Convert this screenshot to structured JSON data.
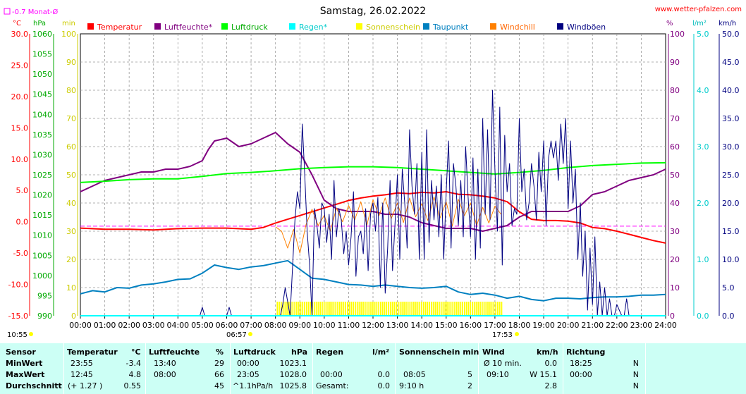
{
  "header": {
    "title": "Samstag, 26.02.2022",
    "website": "www.wetter-pfalzen.com",
    "month_avg_legend": "-0.7 Monat-Ø",
    "unit_temp": "°C",
    "unit_hpa": "hPa",
    "unit_min": "min",
    "unit_pct": "%",
    "unit_rain": "l/m²",
    "unit_wind": "km/h",
    "sunrise": "06:57",
    "sunset": "17:53",
    "day_start": "10:55"
  },
  "colors": {
    "temperature": "#ff0000",
    "humidity": "#800080",
    "pressure": "#00ff00",
    "rain": "#00ffff",
    "sunshine": "#ffff00",
    "dewpoint": "#0080c0",
    "windchill": "#ff8000",
    "gust": "#000080",
    "month_avg": "#ff00ff"
  },
  "chart_data": {
    "type": "line",
    "title": "Samstag, 26.02.2022",
    "x_ticks": [
      "00:00",
      "01:00",
      "02:00",
      "03:00",
      "04:00",
      "05:00",
      "06:00",
      "07:00",
      "08:00",
      "09:00",
      "10:00",
      "11:00",
      "12:00",
      "13:00",
      "14:00",
      "15:00",
      "16:00",
      "17:00",
      "18:00",
      "19:00",
      "20:00",
      "21:00",
      "22:00",
      "23:00",
      "24:00"
    ],
    "xlim": [
      0,
      24
    ],
    "axes": {
      "temperature": {
        "label": "°C",
        "ylim": [
          -15,
          30
        ],
        "ticks": [
          "30.0",
          "25.0",
          "20.0",
          "15.0",
          "10.0",
          "5.0",
          "0.0",
          "-5.0",
          "-10.0",
          "-15.0"
        ]
      },
      "pressure": {
        "label": "hPa",
        "ylim": [
          990,
          1060
        ],
        "ticks": [
          "1060",
          "1055",
          "1050",
          "1045",
          "1040",
          "1035",
          "1030",
          "1025",
          "1020",
          "1015",
          "1010",
          "1005",
          "1000",
          "995",
          "990"
        ]
      },
      "sunshine": {
        "label": "min",
        "ylim": [
          0,
          100
        ],
        "ticks": [
          "100",
          "90",
          "80",
          "70",
          "60",
          "50",
          "40",
          "30",
          "20",
          "10",
          "0"
        ]
      },
      "humidity": {
        "label": "%",
        "ylim": [
          0,
          100
        ],
        "ticks": [
          "100",
          "90",
          "80",
          "70",
          "60",
          "50",
          "40",
          "30",
          "20",
          "10",
          "0"
        ]
      },
      "rain": {
        "label": "l/m²",
        "ylim": [
          0,
          5
        ],
        "ticks": [
          "5.0",
          "4.0",
          "3.0",
          "2.0",
          "1.0",
          "0.0"
        ]
      },
      "wind": {
        "label": "km/h",
        "ylim": [
          0,
          50
        ],
        "ticks": [
          "50.0",
          "45.0",
          "40.0",
          "35.0",
          "30.0",
          "25.0",
          "20.0",
          "15.0",
          "10.0",
          "5.0",
          "0.0"
        ]
      }
    },
    "legend": [
      "Temperatur",
      "Luftfeuchte*",
      "Luftdruck",
      "Regen*",
      "Sonnenschein",
      "Taupunkt",
      "Windchill",
      "Windböen"
    ],
    "month_avg_temperature": -0.7,
    "series": [
      {
        "name": "Temperatur",
        "axis": "temperature",
        "color": "#ff0000",
        "x": [
          0,
          1,
          2,
          3,
          4,
          5,
          6,
          7,
          7.5,
          8,
          8.5,
          9,
          9.5,
          10,
          10.5,
          11,
          11.5,
          12,
          12.5,
          13,
          13.5,
          14,
          14.5,
          15,
          15.5,
          16,
          16.5,
          17,
          17.5,
          18,
          18.5,
          19,
          19.5,
          20,
          20.5,
          21,
          21.5,
          22,
          22.5,
          23,
          23.5,
          24
        ],
        "y": [
          -1.0,
          -1.2,
          -1.2,
          -1.3,
          -1.1,
          -1.0,
          -1.0,
          -1.2,
          -0.9,
          -0.2,
          0.4,
          1.0,
          1.6,
          2.2,
          2.8,
          3.4,
          3.8,
          4.1,
          4.3,
          4.6,
          4.5,
          4.7,
          4.6,
          4.8,
          4.4,
          4.3,
          4.1,
          3.8,
          3.2,
          1.6,
          0.4,
          0.2,
          0.2,
          0.1,
          -0.2,
          -0.9,
          -1.1,
          -1.5,
          -2.0,
          -2.5,
          -3.0,
          -3.4
        ]
      },
      {
        "name": "Luftfeuchte*",
        "axis": "humidity",
        "color": "#800080",
        "x": [
          0,
          0.5,
          1,
          1.5,
          2,
          2.5,
          3,
          3.5,
          4,
          4.5,
          5,
          5.25,
          5.5,
          6,
          6.5,
          7,
          7.5,
          8,
          8.5,
          9,
          9.5,
          10,
          10.5,
          11,
          11.5,
          12,
          12.5,
          13,
          13.5,
          14,
          14.5,
          15,
          15.5,
          16,
          16.5,
          17,
          17.5,
          18,
          18.5,
          19,
          19.5,
          20,
          20.5,
          21,
          21.5,
          22,
          22.5,
          23,
          23.5,
          24
        ],
        "y": [
          44,
          46,
          48,
          49,
          50,
          51,
          51,
          52,
          52,
          53,
          55,
          59,
          62,
          63,
          60,
          61,
          63,
          65,
          61,
          58,
          50,
          41,
          38,
          37,
          37,
          37,
          36,
          36,
          35,
          33,
          32,
          31,
          31,
          31,
          30,
          31,
          32,
          35,
          37,
          37,
          37,
          37,
          39,
          43,
          44,
          46,
          48,
          49,
          50,
          52
        ]
      },
      {
        "name": "Luftdruck",
        "axis": "pressure",
        "color": "#00ff00",
        "x": [
          0,
          1,
          2,
          3,
          4,
          5,
          6,
          7,
          8,
          9,
          10,
          11,
          12,
          13,
          14,
          15,
          16,
          17,
          18,
          19,
          20,
          21,
          22,
          23,
          24
        ],
        "y": [
          1023.1,
          1023.4,
          1023.8,
          1024.0,
          1024.0,
          1024.6,
          1025.3,
          1025.6,
          1026.0,
          1026.5,
          1026.8,
          1027.0,
          1027.0,
          1026.8,
          1026.4,
          1026.0,
          1025.6,
          1025.2,
          1025.6,
          1026.1,
          1026.8,
          1027.3,
          1027.6,
          1027.9,
          1028.0
        ]
      },
      {
        "name": "Taupunkt",
        "axis": "temperature",
        "color": "#0080c0",
        "x": [
          0,
          0.5,
          1,
          1.5,
          2,
          2.5,
          3,
          3.5,
          4,
          4.5,
          5,
          5.5,
          6,
          6.5,
          7,
          7.5,
          8,
          8.5,
          9,
          9.5,
          10,
          10.5,
          11,
          11.5,
          12,
          12.5,
          13,
          13.5,
          14,
          14.5,
          15,
          15.5,
          16,
          16.5,
          17,
          17.5,
          18,
          18.5,
          19,
          19.5,
          20,
          20.5,
          21,
          21.5,
          22,
          22.5,
          23,
          23.5,
          24
        ],
        "y": [
          -11.5,
          -11.0,
          -11.2,
          -10.5,
          -10.6,
          -10.1,
          -9.9,
          -9.6,
          -9.2,
          -9.1,
          -8.2,
          -6.9,
          -7.3,
          -7.6,
          -7.2,
          -7.0,
          -6.6,
          -6.2,
          -7.6,
          -9.0,
          -9.2,
          -9.6,
          -10.0,
          -10.1,
          -10.3,
          -10.1,
          -10.3,
          -10.5,
          -10.6,
          -10.5,
          -10.3,
          -11.2,
          -11.6,
          -11.4,
          -11.7,
          -12.2,
          -11.9,
          -12.4,
          -12.6,
          -12.2,
          -12.2,
          -12.3,
          -12.1,
          -12.0,
          -12.0,
          -11.9,
          -11.7,
          -11.7,
          -11.6
        ]
      },
      {
        "name": "Windchill",
        "axis": "temperature",
        "color": "#ff8000",
        "x": [
          8,
          8.25,
          8.5,
          8.75,
          9,
          9.25,
          9.5,
          9.75,
          10,
          10.25,
          10.5,
          10.75,
          11,
          11.25,
          11.5,
          11.75,
          12,
          12.25,
          12.5,
          12.75,
          13,
          13.25,
          13.5,
          13.75,
          14,
          14.25,
          14.5,
          14.75,
          15,
          15.25,
          15.5,
          15.75,
          16,
          16.25,
          16.5,
          16.75,
          17,
          17.25
        ],
        "y": [
          -0.8,
          -1.5,
          -4.2,
          -1.2,
          -5.0,
          -0.5,
          2.0,
          -0.6,
          1.0,
          -1.5,
          2.2,
          0.0,
          2.6,
          0.3,
          3.2,
          -0.5,
          3.5,
          1.0,
          3.8,
          0.5,
          3.0,
          -0.1,
          3.8,
          0.8,
          2.9,
          0.2,
          4.0,
          0.6,
          3.2,
          -0.7,
          3.6,
          1.0,
          3.0,
          -0.6,
          2.3,
          -0.2,
          2.5,
          1.2
        ]
      },
      {
        "name": "Windböen",
        "axis": "wind",
        "color": "#000080",
        "x": [
          0,
          4.9,
          5.0,
          5.1,
          6.0,
          6.1,
          6.2,
          7.5,
          8.2,
          8.3,
          8.4,
          8.6,
          8.8,
          8.9,
          9.0,
          9.1,
          9.2,
          9.3,
          9.4,
          9.5,
          9.6,
          9.7,
          9.8,
          9.9,
          10.0,
          10.1,
          10.2,
          10.3,
          10.4,
          10.5,
          10.6,
          10.7,
          10.8,
          10.9,
          11.0,
          11.1,
          11.2,
          11.3,
          11.4,
          11.5,
          11.6,
          11.7,
          11.8,
          11.9,
          12.0,
          12.1,
          12.2,
          12.3,
          12.4,
          12.5,
          12.6,
          12.7,
          12.8,
          12.9,
          13.0,
          13.1,
          13.2,
          13.3,
          13.4,
          13.5,
          13.6,
          13.7,
          13.8,
          13.9,
          14.0,
          14.1,
          14.2,
          14.3,
          14.4,
          14.5,
          14.6,
          14.7,
          14.8,
          14.9,
          15.0,
          15.1,
          15.2,
          15.3,
          15.4,
          15.5,
          15.6,
          15.7,
          15.8,
          15.9,
          16.0,
          16.1,
          16.2,
          16.3,
          16.4,
          16.5,
          16.6,
          16.7,
          16.8,
          16.9,
          17.0,
          17.1,
          17.2,
          17.3,
          17.4,
          17.5,
          17.6,
          17.7,
          17.8,
          17.9,
          18.0,
          18.1,
          18.2,
          18.3,
          18.4,
          18.5,
          18.6,
          18.7,
          18.8,
          18.9,
          19.0,
          19.1,
          19.2,
          19.3,
          19.4,
          19.5,
          19.6,
          19.7,
          19.8,
          19.9,
          20.0,
          20.1,
          20.2,
          20.3,
          20.4,
          20.5,
          20.6,
          20.7,
          20.8,
          20.9,
          21.0,
          21.1,
          21.2,
          21.3,
          21.4,
          21.5,
          21.6,
          21.7,
          21.8,
          21.9,
          22.0,
          22.1,
          22.2,
          22.3,
          22.4,
          22.5,
          23.0,
          24.0
        ],
        "y": [
          0,
          0,
          1.5,
          0,
          0,
          1.5,
          0,
          0,
          0,
          2,
          5,
          0,
          17,
          22,
          19,
          34,
          25,
          15,
          9,
          0,
          19,
          16,
          12,
          20,
          19,
          13,
          18,
          10,
          24,
          14,
          19,
          17,
          11,
          15,
          9,
          14,
          22,
          7,
          14,
          15,
          11,
          19,
          8,
          18,
          20,
          15,
          21,
          5,
          20,
          4,
          12,
          24,
          8,
          16,
          25,
          10,
          26,
          20,
          12,
          33,
          23,
          18,
          27,
          10,
          29,
          10,
          33,
          13,
          24,
          17,
          23,
          14,
          25,
          10,
          22,
          31,
          12,
          27,
          23,
          16,
          24,
          14,
          30,
          21,
          14,
          28,
          10,
          26,
          12,
          35,
          18,
          33,
          17,
          40,
          26,
          15,
          37,
          9,
          32,
          22,
          27,
          16,
          19,
          18,
          35,
          22,
          26,
          17,
          20,
          27,
          23,
          17,
          29,
          22,
          31,
          16,
          28,
          31,
          28,
          31,
          24,
          34,
          27,
          35,
          19,
          31,
          20,
          26,
          10,
          20,
          7,
          15,
          1,
          12,
          2,
          14,
          0,
          6,
          0,
          5,
          0,
          3,
          0,
          0,
          2,
          1,
          0,
          0,
          3,
          0,
          0,
          0
        ]
      }
    ],
    "sunshine_bars": {
      "name": "Sonnenschein",
      "axis": "sunshine",
      "start": 8.05,
      "end": 17.3,
      "value": 5
    }
  },
  "table": {
    "columns": [
      {
        "label": "Sensor",
        "unit": ""
      },
      {
        "label": "Temperatur",
        "unit": "°C"
      },
      {
        "label": "Luftfeuchte",
        "unit": "%"
      },
      {
        "label": "Luftdruck",
        "unit": "hPa"
      },
      {
        "label": "Regen",
        "unit": "l/m²"
      },
      {
        "label": "Sonnenschein min",
        "unit": ""
      },
      {
        "label": "Wind",
        "unit": "km/h"
      },
      {
        "label": "Richtung",
        "unit": ""
      }
    ],
    "rows": [
      {
        "sensor": "MinWert",
        "temp_time": "23:55",
        "temp": "-3.4",
        "hum_time": "13:40",
        "hum": "29",
        "press_time": "00:00",
        "press": "1023.1",
        "rain_time": "",
        "rain": "",
        "sun_time": "",
        "sun": "",
        "wind_time": "Ø 10 min.",
        "wind": "0.0",
        "dir_time": "18:25",
        "dir": "N"
      },
      {
        "sensor": "MaxWert",
        "temp_time": "12:45",
        "temp": "4.8",
        "hum_time": "08:00",
        "hum": "66",
        "press_time": "23:05",
        "press": "1028.0",
        "rain_time": "00:00",
        "rain": "0.0",
        "sun_time": "08:05",
        "sun": "5",
        "wind_time": "09:10",
        "wind": "W 15.1",
        "dir_time": "00:00",
        "dir": "N"
      },
      {
        "sensor": "Durchschnitt",
        "temp_time": "(+ 1.27 )",
        "temp": "0.55",
        "hum_time": "",
        "hum": "45",
        "press_time": "^1.1hPa/h",
        "press": "1025.8",
        "rain_time": "Gesamt:",
        "rain": "0.0",
        "sun_time": "9:10 h",
        "sun": "2",
        "wind_time": "",
        "wind": "2.8",
        "dir_time": "",
        "dir": "N"
      }
    ]
  }
}
